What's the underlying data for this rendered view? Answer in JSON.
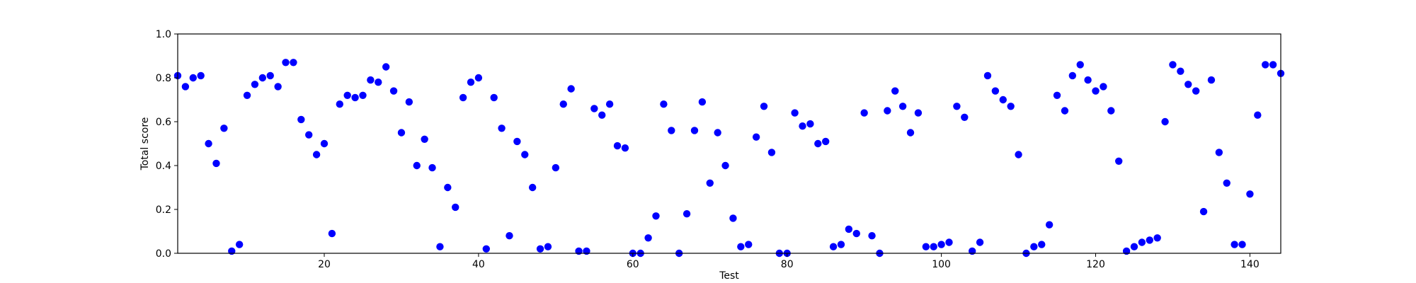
{
  "chart_data": {
    "type": "scatter",
    "title": "",
    "xlabel": "Test",
    "ylabel": "Total score",
    "xlim": [
      1,
      144
    ],
    "ylim": [
      0.0,
      1.0
    ],
    "xticks": [
      20,
      40,
      60,
      80,
      100,
      120,
      140
    ],
    "xtick_labels": [
      "20",
      "40",
      "60",
      "80",
      "100",
      "120",
      "140"
    ],
    "yticks": [
      0.0,
      0.2,
      0.4,
      0.6,
      0.8,
      1.0
    ],
    "ytick_labels": [
      "0.0",
      "0.2",
      "0.4",
      "0.6",
      "0.8",
      "1.0"
    ],
    "grid": false,
    "marker_color": "#0000ff",
    "series": [
      {
        "name": "Total score",
        "x": [
          1,
          2,
          3,
          4,
          5,
          6,
          7,
          8,
          9,
          10,
          11,
          12,
          13,
          14,
          15,
          16,
          17,
          18,
          19,
          20,
          21,
          22,
          23,
          24,
          25,
          26,
          27,
          28,
          29,
          30,
          31,
          32,
          33,
          34,
          35,
          36,
          37,
          38,
          39,
          40,
          41,
          42,
          43,
          44,
          45,
          46,
          47,
          48,
          49,
          50,
          51,
          52,
          53,
          54,
          55,
          56,
          57,
          58,
          59,
          60,
          61,
          62,
          63,
          64,
          65,
          66,
          67,
          68,
          69,
          70,
          71,
          72,
          73,
          74,
          75,
          76,
          77,
          78,
          79,
          80,
          81,
          82,
          83,
          84,
          85,
          86,
          87,
          88,
          89,
          90,
          91,
          92,
          93,
          94,
          95,
          96,
          97,
          98,
          99,
          100,
          101,
          102,
          103,
          104,
          105,
          106,
          107,
          108,
          109,
          110,
          111,
          112,
          113,
          114,
          115,
          116,
          117,
          118,
          119,
          120,
          121,
          122,
          123,
          124,
          125,
          126,
          127,
          128,
          129,
          130,
          131,
          132,
          133,
          134,
          135,
          136,
          137,
          138,
          139,
          140,
          141,
          142,
          143,
          144
        ],
        "y": [
          0.81,
          0.76,
          0.8,
          0.81,
          0.5,
          0.41,
          0.57,
          0.01,
          0.04,
          0.72,
          0.77,
          0.8,
          0.81,
          0.76,
          0.87,
          0.87,
          0.61,
          0.54,
          0.45,
          0.5,
          0.09,
          0.68,
          0.72,
          0.71,
          0.72,
          0.79,
          0.78,
          0.85,
          0.74,
          0.55,
          0.69,
          0.4,
          0.52,
          0.39,
          0.03,
          0.3,
          0.21,
          0.71,
          0.78,
          0.8,
          0.02,
          0.71,
          0.57,
          0.08,
          0.51,
          0.45,
          0.3,
          0.02,
          0.03,
          0.39,
          0.68,
          0.75,
          0.01,
          0.01,
          0.66,
          0.63,
          0.68,
          0.49,
          0.48,
          0.0,
          0.0,
          0.07,
          0.17,
          0.68,
          0.56,
          0.0,
          0.18,
          0.56,
          0.69,
          0.32,
          0.55,
          0.4,
          0.16,
          0.03,
          0.04,
          0.53,
          0.67,
          0.46,
          0.0,
          0.0,
          0.64,
          0.58,
          0.59,
          0.5,
          0.51,
          0.03,
          0.04,
          0.11,
          0.09,
          0.64,
          0.08,
          0.0,
          0.65,
          0.74,
          0.67,
          0.55,
          0.64,
          0.03,
          0.03,
          0.04,
          0.05,
          0.67,
          0.62,
          0.01,
          0.05,
          0.81,
          0.74,
          0.7,
          0.67,
          0.45,
          0.0,
          0.03,
          0.04,
          0.13,
          0.72,
          0.65,
          0.81,
          0.86,
          0.79,
          0.74,
          0.76,
          0.65,
          0.42,
          0.01,
          0.03,
          0.05,
          0.06,
          0.07,
          0.6,
          0.86,
          0.83,
          0.77,
          0.74,
          0.19,
          0.79,
          0.46,
          0.32,
          0.04,
          0.04,
          0.27,
          0.63,
          0.86,
          0.86,
          0.82
        ]
      }
    ]
  }
}
